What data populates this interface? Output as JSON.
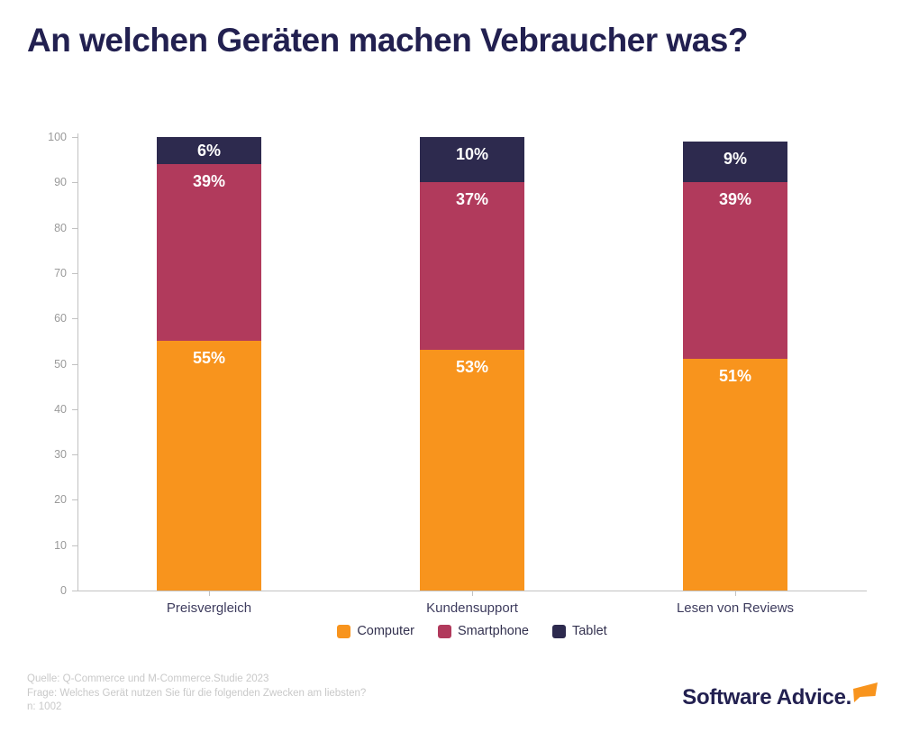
{
  "title": "An welchen Geräten machen Vebraucher was?",
  "chart_data": {
    "type": "bar",
    "stacked": true,
    "title": "An welchen Geräten machen Vebraucher was?",
    "categories": [
      "Preisvergleich",
      "Kundensupport",
      "Lesen von Reviews"
    ],
    "series": [
      {
        "name": "Computer",
        "color": "#f8941d",
        "values": [
          55,
          53,
          51
        ]
      },
      {
        "name": "Smartphone",
        "color": "#b13a5c",
        "values": [
          39,
          37,
          39
        ]
      },
      {
        "name": "Tablet",
        "color": "#2d2a4e",
        "values": [
          6,
          10,
          9
        ]
      }
    ],
    "value_suffix": "%",
    "xlabel": "",
    "ylabel": "",
    "ylim": [
      0,
      100
    ],
    "yticks": [
      0,
      10,
      20,
      30,
      40,
      50,
      60,
      70,
      80,
      90,
      100
    ],
    "grid": false,
    "legend_position": "bottom"
  },
  "footer": {
    "source": "Quelle: Q-Commerce und M-Commerce.Studie 2023",
    "question": "Frage: Welches Gerät nutzen Sie für die folgenden Zwecken am liebsten?",
    "sample": "n: 1002"
  },
  "branding": {
    "logo_text": "Software Advice.",
    "logo_color": "#222050",
    "accent_color": "#f8941d"
  }
}
